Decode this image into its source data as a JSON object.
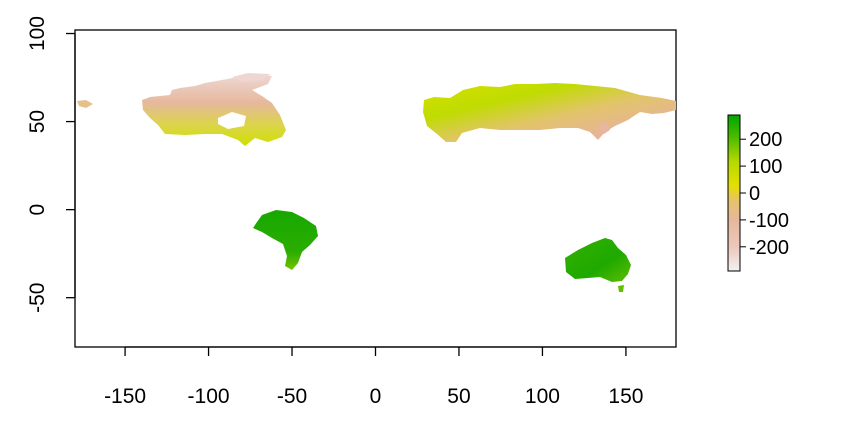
{
  "chart_data": {
    "type": "heatmap",
    "title": "",
    "xlabel": "",
    "ylabel": "",
    "xlim": [
      -180,
      180
    ],
    "ylim": [
      -78,
      102
    ],
    "x_ticks": [
      "-150",
      "-100",
      "-50",
      "0",
      "50",
      "100",
      "150"
    ],
    "y_ticks": [
      "100",
      "50",
      "0",
      "-50"
    ],
    "legend": {
      "position": "right",
      "ticks": [
        "200",
        "100",
        "0",
        "-100",
        "-200"
      ],
      "range": [
        -290,
        290
      ],
      "colors": [
        "#f2f2f2",
        "#e6b89c",
        "#e8c26a",
        "#e3e000",
        "#b6d800",
        "#4fbd00",
        "#00a600"
      ]
    },
    "regions": [
      {
        "name": "North America",
        "value_range": [
          -220,
          40
        ]
      },
      {
        "name": "Eurasia",
        "value_range": [
          -220,
          40
        ]
      },
      {
        "name": "South America",
        "value_range": [
          160,
          250
        ]
      },
      {
        "name": "Australia",
        "value_range": [
          130,
          250
        ]
      }
    ]
  }
}
